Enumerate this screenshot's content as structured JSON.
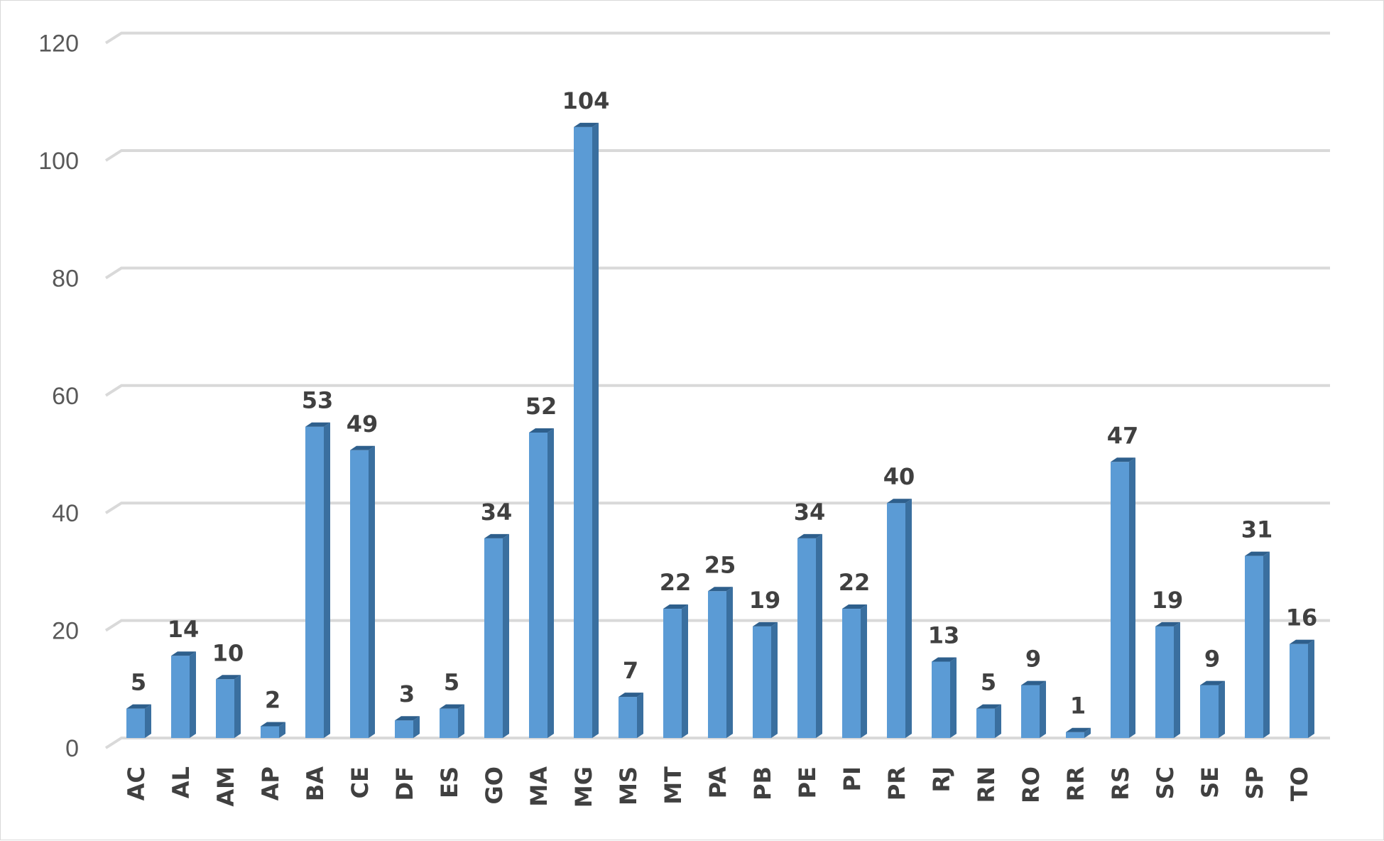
{
  "chart_data": {
    "type": "bar",
    "title": "",
    "xlabel": "",
    "ylabel": "",
    "ylim": [
      0,
      120
    ],
    "yticks": [
      0,
      20,
      40,
      60,
      80,
      100,
      120
    ],
    "grid": true,
    "categories": [
      "AC",
      "AL",
      "AM",
      "AP",
      "BA",
      "CE",
      "DF",
      "ES",
      "GO",
      "MA",
      "MG",
      "MS",
      "MT",
      "PA",
      "PB",
      "PE",
      "PI",
      "PR",
      "RJ",
      "RN",
      "RO",
      "RR",
      "RS",
      "SC",
      "SE",
      "SP",
      "TO"
    ],
    "values": [
      5,
      14,
      10,
      2,
      53,
      49,
      3,
      5,
      34,
      52,
      104,
      7,
      22,
      25,
      19,
      34,
      22,
      40,
      13,
      5,
      9,
      1,
      47,
      19,
      9,
      31,
      16
    ],
    "colors": {
      "bar_front": "#5b9bd5",
      "bar_side": "#3a6f9f",
      "bar_top": "#2e5f8c",
      "grid": "#d9d9d9"
    }
  }
}
